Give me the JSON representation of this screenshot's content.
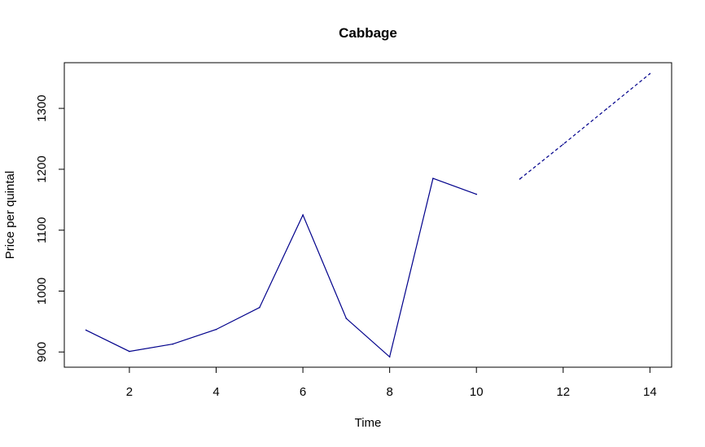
{
  "chart_data": {
    "type": "line",
    "title": "Cabbage",
    "xlabel": "Time",
    "ylabel": "Price per quintal",
    "xlim": [
      0.5,
      14.5
    ],
    "ylim": [
      875,
      1375
    ],
    "x_ticks": [
      2,
      4,
      6,
      8,
      10,
      12,
      14
    ],
    "y_ticks": [
      900,
      1000,
      1100,
      1200,
      1300
    ],
    "grid": false,
    "series": [
      {
        "style": "solid",
        "color": "#00008B",
        "x": [
          1,
          2,
          3,
          4,
          5,
          6,
          7,
          8,
          9,
          10
        ],
        "values": [
          936,
          901,
          913,
          937,
          973,
          1125,
          955,
          892,
          1185,
          1159
        ]
      },
      {
        "style": "dashed",
        "color": "#00008B",
        "x": [
          11,
          12,
          13,
          14
        ],
        "values": [
          1184,
          1241,
          1299,
          1357
        ]
      }
    ]
  }
}
